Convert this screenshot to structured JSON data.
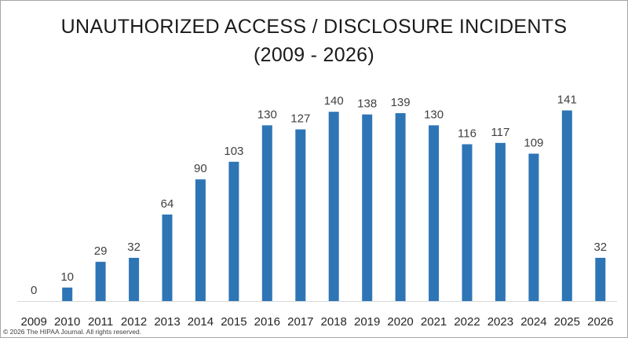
{
  "chart_data": {
    "type": "bar",
    "title": "UNAUTHORIZED ACCESS / DISCLOSURE INCIDENTS",
    "subtitle": "(2009 - 2026)",
    "xlabel": "",
    "ylabel": "",
    "categories": [
      "2009",
      "2010",
      "2011",
      "2012",
      "2013",
      "2014",
      "2015",
      "2016",
      "2017",
      "2018",
      "2019",
      "2020",
      "2021",
      "2022",
      "2023",
      "2024",
      "2025",
      "2026"
    ],
    "values": [
      0,
      10,
      29,
      32,
      64,
      90,
      103,
      130,
      127,
      140,
      138,
      139,
      130,
      116,
      117,
      109,
      141,
      32
    ],
    "ylim": [
      0,
      160
    ],
    "grid": false,
    "legend": "none",
    "data_labels": true,
    "bar_color": "#2e75b6"
  },
  "footer": {
    "copyright": "© 2026 The HIPAA Journal. All rights reserved."
  }
}
